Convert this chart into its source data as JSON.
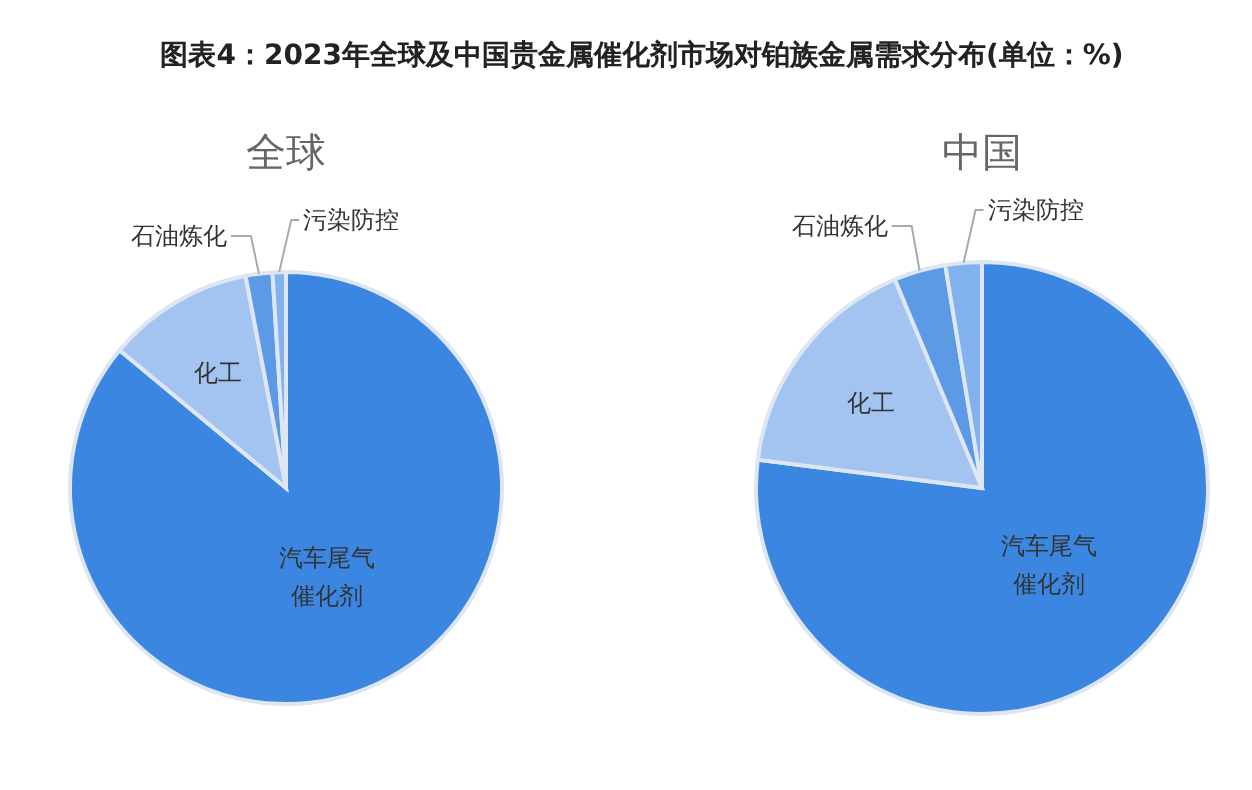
{
  "chart_data": [
    {
      "type": "pie",
      "title": "图表4：2023年全球及中国贵金属催化剂市场对铂族金属需求分布(单位：%)",
      "subtitle": "全球",
      "categories": [
        "汽车尾气催化剂",
        "化工",
        "石油炼化",
        "污染防控"
      ],
      "values": [
        86,
        11,
        2,
        1
      ],
      "colors": [
        "#3b86e0",
        "#a3c4f0",
        "#5d9ae6",
        "#82b2ed"
      ]
    },
    {
      "type": "pie",
      "subtitle": "中国",
      "categories": [
        "汽车尾气催化剂",
        "化工",
        "石油炼化",
        "污染防控"
      ],
      "values": [
        77,
        16.7,
        3.7,
        2.6
      ],
      "colors": [
        "#3b86e0",
        "#a3c4f0",
        "#5d9ae6",
        "#82b2ed"
      ]
    }
  ]
}
